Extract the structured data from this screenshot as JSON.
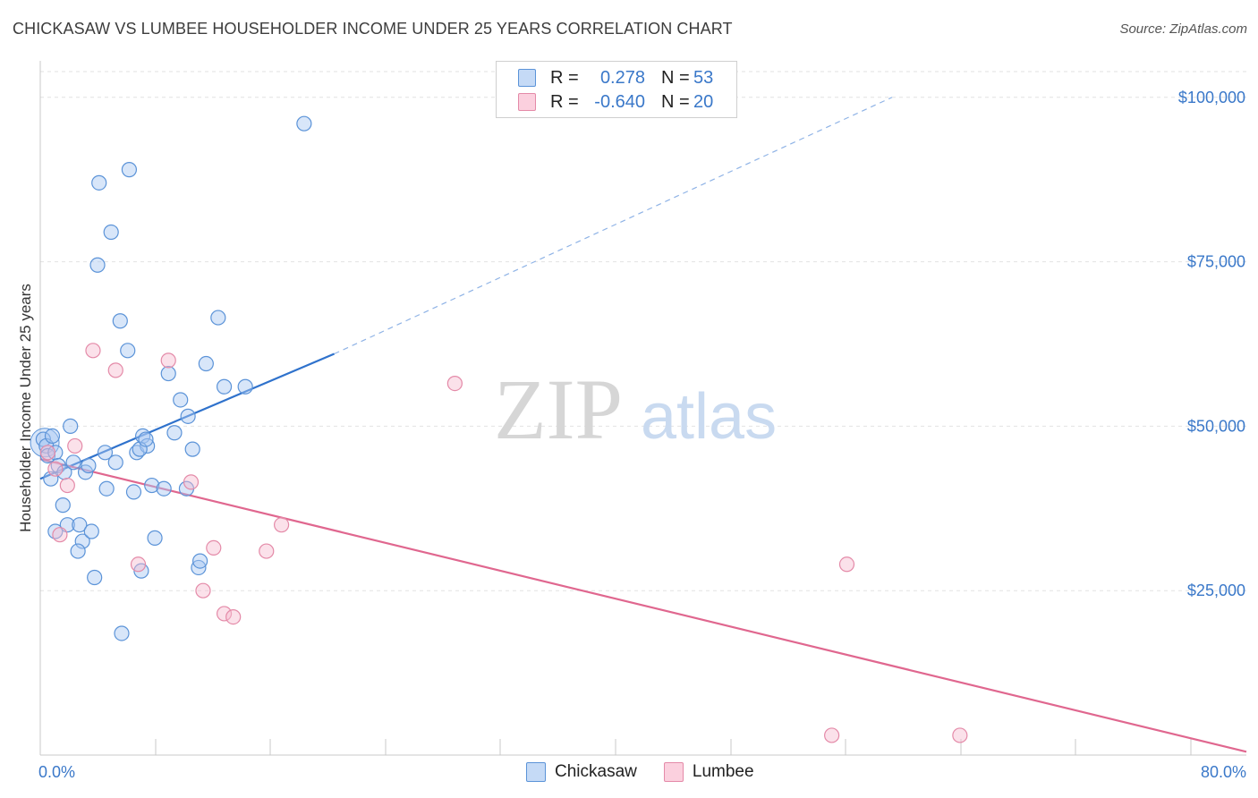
{
  "title": "CHICKASAW VS LUMBEE HOUSEHOLDER INCOME UNDER 25 YEARS CORRELATION CHART",
  "source": "Source: ZipAtlas.com",
  "watermark": {
    "zip": "ZIP",
    "atlas": "atlas"
  },
  "colors": {
    "chickasaw_fill": "#a9c8f2",
    "chickasaw_stroke": "#5b93d8",
    "chickasaw_line": "#2f72cc",
    "lumbee_fill": "#f7bdd0",
    "lumbee_stroke": "#e48aa8",
    "lumbee_line": "#e0678f",
    "tick_text": "#3a78c9"
  },
  "legend": {
    "rows": [
      {
        "series": "Chickasaw",
        "r_label": "R =",
        "r_value": "0.278",
        "n_label": "N =",
        "n_value": "53"
      },
      {
        "series": "Lumbee",
        "r_label": "R =",
        "r_value": "-0.640",
        "n_label": "N =",
        "n_value": "20"
      }
    ]
  },
  "bottom_legend": [
    "Chickasaw",
    "Lumbee"
  ],
  "chart_data": {
    "type": "scatter",
    "title": "CHICKASAW VS LUMBEE HOUSEHOLDER INCOME UNDER 25 YEARS CORRELATION CHART",
    "xlabel": "",
    "ylabel": "Householder Income Under 25 years",
    "xlim": [
      0,
      80
    ],
    "ylim": [
      0,
      105000
    ],
    "x_tick_labels": [
      "0.0%",
      "80.0%"
    ],
    "y_ticks": [
      {
        "value": 25000,
        "label": "$25,000"
      },
      {
        "value": 50000,
        "label": "$50,000"
      },
      {
        "value": 75000,
        "label": "$75,000"
      },
      {
        "value": 100000,
        "label": "$100,000"
      }
    ],
    "series": [
      {
        "name": "Chickasaw",
        "points": [
          [
            0.2,
            48000
          ],
          [
            0.4,
            47000
          ],
          [
            0.5,
            45500
          ],
          [
            0.7,
            42000
          ],
          [
            0.8,
            48500
          ],
          [
            1.0,
            46000
          ],
          [
            1.2,
            44000
          ],
          [
            1.5,
            38000
          ],
          [
            1.6,
            43000
          ],
          [
            1.8,
            35000
          ],
          [
            2.0,
            50000
          ],
          [
            2.2,
            44500
          ],
          [
            1.0,
            34000
          ],
          [
            2.6,
            35000
          ],
          [
            2.8,
            32500
          ],
          [
            2.5,
            31000
          ],
          [
            3.0,
            43000
          ],
          [
            3.2,
            44000
          ],
          [
            3.4,
            34000
          ],
          [
            3.6,
            27000
          ],
          [
            3.8,
            74500
          ],
          [
            3.9,
            87000
          ],
          [
            4.3,
            46000
          ],
          [
            4.4,
            40500
          ],
          [
            4.7,
            79500
          ],
          [
            5.0,
            44500
          ],
          [
            5.3,
            66000
          ],
          [
            5.4,
            18500
          ],
          [
            5.8,
            61500
          ],
          [
            5.9,
            89000
          ],
          [
            6.2,
            40000
          ],
          [
            6.4,
            46000
          ],
          [
            6.7,
            28000
          ],
          [
            6.8,
            48500
          ],
          [
            7.1,
            47000
          ],
          [
            6.6,
            46500
          ],
          [
            7.4,
            41000
          ],
          [
            7.6,
            33000
          ],
          [
            8.2,
            40500
          ],
          [
            8.5,
            58000
          ],
          [
            8.9,
            49000
          ],
          [
            9.3,
            54000
          ],
          [
            9.8,
            51500
          ],
          [
            10.1,
            46500
          ],
          [
            10.5,
            28500
          ],
          [
            10.6,
            29500
          ],
          [
            11.0,
            59500
          ],
          [
            11.8,
            66500
          ],
          [
            12.2,
            56000
          ],
          [
            13.6,
            56000
          ],
          [
            17.5,
            96000
          ],
          [
            7.0,
            48000
          ],
          [
            9.7,
            40500
          ]
        ],
        "trend": {
          "x0": 0,
          "y0": 42000,
          "x1": 19.5,
          "y1": 61000,
          "dashed_to_x": 56.5,
          "dashed_to_y": 100000
        }
      },
      {
        "name": "Lumbee",
        "points": [
          [
            0.5,
            46000
          ],
          [
            1.0,
            43500
          ],
          [
            1.3,
            33500
          ],
          [
            1.8,
            41000
          ],
          [
            2.3,
            47000
          ],
          [
            3.5,
            61500
          ],
          [
            5.0,
            58500
          ],
          [
            6.5,
            29000
          ],
          [
            8.5,
            60000
          ],
          [
            10.0,
            41500
          ],
          [
            10.8,
            25000
          ],
          [
            11.5,
            31500
          ],
          [
            12.2,
            21500
          ],
          [
            12.8,
            21000
          ],
          [
            15.0,
            31000
          ],
          [
            16.0,
            35000
          ],
          [
            27.5,
            56500
          ],
          [
            52.5,
            3000
          ],
          [
            53.5,
            29000
          ],
          [
            61.0,
            3000
          ]
        ],
        "trend": {
          "x0": 0,
          "y0": 45000,
          "x1": 80,
          "y1": 500
        }
      }
    ]
  }
}
